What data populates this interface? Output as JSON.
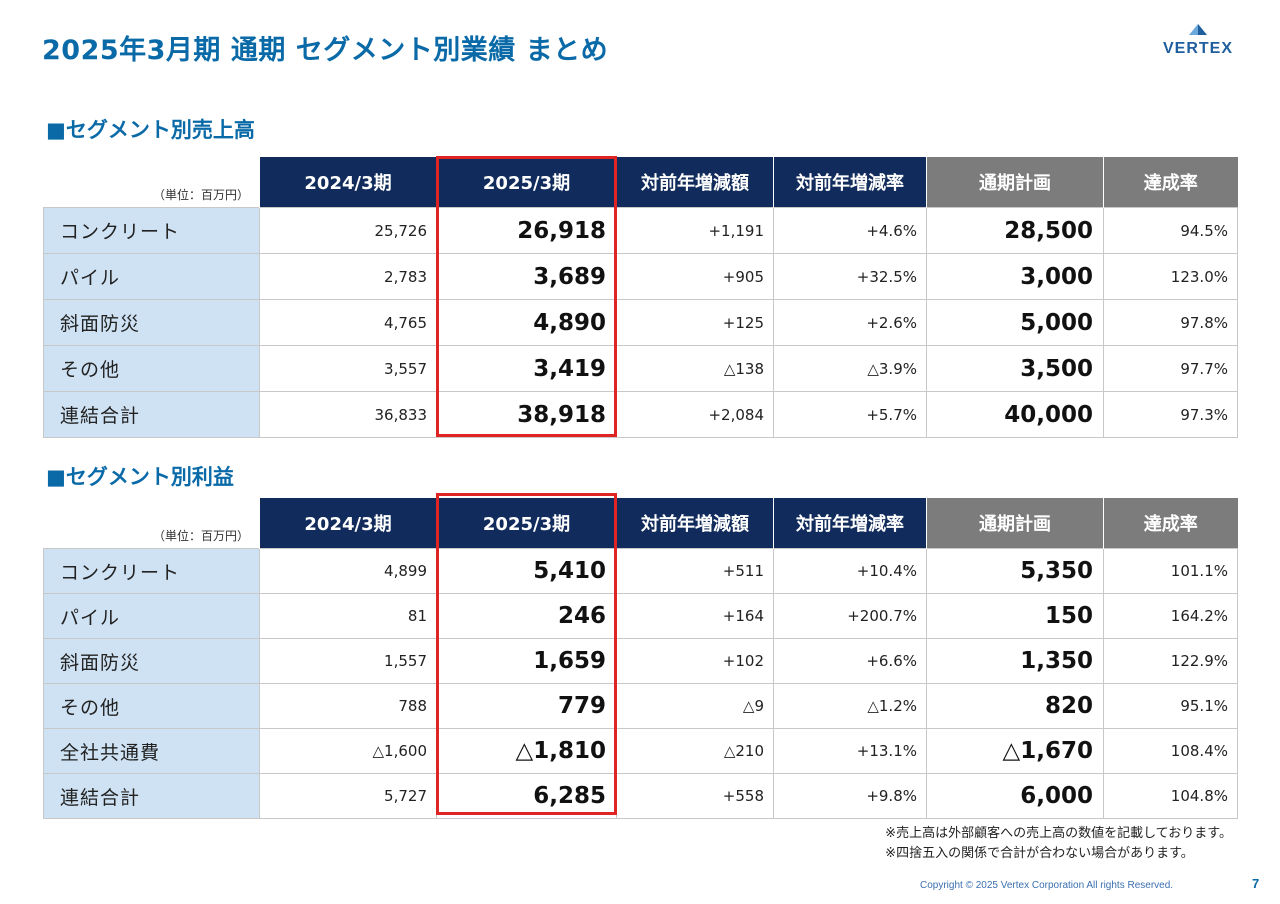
{
  "header": {
    "title": "2025年3月期 通期 セグメント別業績 まとめ",
    "logo_text": "VERTEX"
  },
  "columns": [
    "2024/3期",
    "2025/3期",
    "対前年増減額",
    "対前年増減率",
    "通期計画",
    "達成率"
  ],
  "unit_label": "（単位：百万円）",
  "sales": {
    "title": "■セグメント別売上高",
    "rows": [
      {
        "label": "コンクリート",
        "cells": [
          "25,726",
          "26,918",
          "+1,191",
          "+4.6%",
          "28,500",
          "94.5%"
        ]
      },
      {
        "label": "パイル",
        "cells": [
          "2,783",
          "3,689",
          "+905",
          "+32.5%",
          "3,000",
          "123.0%"
        ]
      },
      {
        "label": "斜面防災",
        "cells": [
          "4,765",
          "4,890",
          "+125",
          "+2.6%",
          "5,000",
          "97.8%"
        ]
      },
      {
        "label": "その他",
        "cells": [
          "3,557",
          "3,419",
          "△138",
          "△3.9%",
          "3,500",
          "97.7%"
        ]
      },
      {
        "label": "連結合計",
        "cells": [
          "36,833",
          "38,918",
          "+2,084",
          "+5.7%",
          "40,000",
          "97.3%"
        ]
      }
    ]
  },
  "profit": {
    "title": "■セグメント別利益",
    "rows": [
      {
        "label": "コンクリート",
        "cells": [
          "4,899",
          "5,410",
          "+511",
          "+10.4%",
          "5,350",
          "101.1%"
        ]
      },
      {
        "label": "パイル",
        "cells": [
          "81",
          "246",
          "+164",
          "+200.7%",
          "150",
          "164.2%"
        ]
      },
      {
        "label": "斜面防災",
        "cells": [
          "1,557",
          "1,659",
          "+102",
          "+6.6%",
          "1,350",
          "122.9%"
        ]
      },
      {
        "label": "その他",
        "cells": [
          "788",
          "779",
          "△9",
          "△1.2%",
          "820",
          "95.1%"
        ]
      },
      {
        "label": "全社共通費",
        "cells": [
          "△1,600",
          "△1,810",
          "△210",
          "+13.1%",
          "△1,670",
          "108.4%"
        ]
      },
      {
        "label": "連結合計",
        "cells": [
          "5,727",
          "6,285",
          "+558",
          "+9.8%",
          "6,000",
          "104.8%"
        ]
      }
    ]
  },
  "notes": [
    "※売上高は外部顧客への売上高の数値を記載しております。",
    "※四捨五入の関係で合計が合わない場合があります。"
  ],
  "footer": {
    "copyright": "Copyright © 2025 Vertex Corporation All rights Reserved.",
    "page_number": "7"
  },
  "colors": {
    "title_blue": "#0a6aa8",
    "header_navy": "#112c5c",
    "header_gray": "#7c7c7c",
    "label_bg": "#cfe2f3",
    "highlight_red": "#e02424"
  }
}
